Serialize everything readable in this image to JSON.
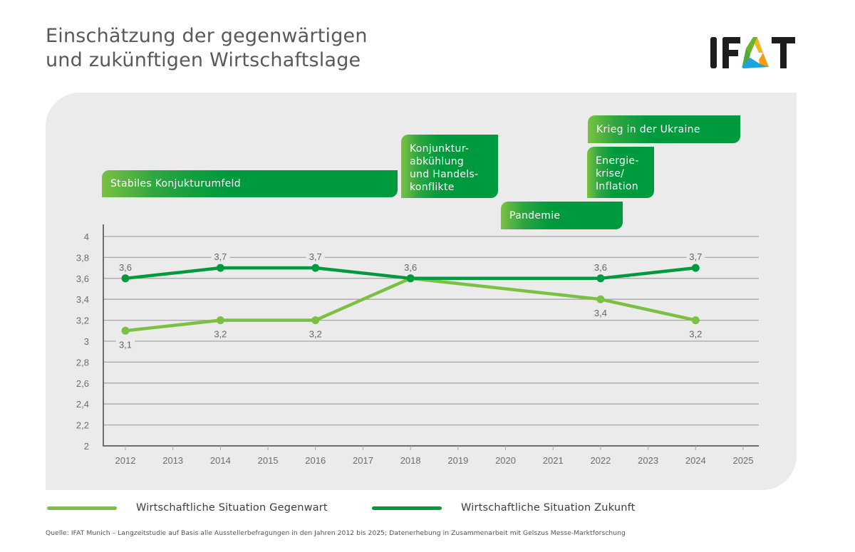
{
  "header": {
    "title_line1": "Einschätzung der gegenwärtigen",
    "title_line2": "und zukünftigen Wirtschaftslage",
    "logo": {
      "text": "IFAT",
      "icon": "ifat-triangle-logo-icon",
      "colors": {
        "letters": "#1d1d1b",
        "green": "#6ab42d",
        "blue": "#1fa3dc",
        "orange": "#f39c12"
      }
    }
  },
  "annotations": [
    {
      "id": "stabil",
      "text": "Stabiles Konjukturumfeld"
    },
    {
      "id": "abkuehlung",
      "text": "Konjunktur-\nabkühlung\nund Handels-\nkonflikte"
    },
    {
      "id": "pandemie",
      "text": "Pandemie"
    },
    {
      "id": "energie",
      "text": "Energie-\nkrise/\nInflation"
    },
    {
      "id": "krieg",
      "text": "Krieg in der Ukraine"
    }
  ],
  "colors": {
    "gegenwart": "#7ac142",
    "zukunft": "#009a3e",
    "panel": "#ebebeb",
    "grid": "#a7a7a7",
    "axis": "#6d6d6d",
    "tick_text": "#6d6d6d"
  },
  "chart_data": {
    "type": "line",
    "title": "Einschätzung der gegenwärtigen und zukünftigen Wirtschaftslage",
    "xlabel": "",
    "ylabel": "",
    "x_ticks": [
      "2012",
      "2013",
      "2014",
      "2015",
      "2016",
      "2017",
      "2018",
      "2019",
      "2020",
      "2021",
      "2022",
      "2023",
      "2024",
      "2025"
    ],
    "xlim": [
      2012,
      2025
    ],
    "y_ticks": [
      "2",
      "2,2",
      "2,4",
      "2,6",
      "2,8",
      "3",
      "3,2",
      "3,4",
      "3,6",
      "3,8",
      "4"
    ],
    "ylim": [
      2,
      4
    ],
    "grid": true,
    "legend_position": "bottom",
    "series": [
      {
        "name": "Wirtschaftliche Situation Gegenwart",
        "color_key": "gegenwart",
        "x": [
          2012,
          2014,
          2016,
          2018,
          2022,
          2024
        ],
        "values": [
          3.1,
          3.2,
          3.2,
          3.6,
          3.4,
          3.2
        ],
        "labels": [
          "3,1",
          "3,2",
          "3,2",
          "",
          "3,4",
          "3,2"
        ],
        "label_position": "below"
      },
      {
        "name": "Wirtschaftliche Situation Zukunft",
        "color_key": "zukunft",
        "x": [
          2012,
          2014,
          2016,
          2018,
          2022,
          2024
        ],
        "values": [
          3.6,
          3.7,
          3.7,
          3.6,
          3.6,
          3.7
        ],
        "labels": [
          "3,6",
          "3,7",
          "3,7",
          "3,6",
          "3,6",
          "3,7"
        ],
        "label_position": "above"
      }
    ]
  },
  "legend": [
    {
      "label": "Wirtschaftliche Situation Gegenwart",
      "color_key": "gegenwart"
    },
    {
      "label": "Wirtschaftliche Situation Zukunft",
      "color_key": "zukunft"
    }
  ],
  "footer": {
    "source": "Quelle: IFAT Munich – Langzeitstudie auf Basis alle Ausstellerbefragungen in den Jahren 2012 bis 2025; Datenerhebung in Zusammenarbeit mit Gelszus Messe-Marktforschung"
  }
}
